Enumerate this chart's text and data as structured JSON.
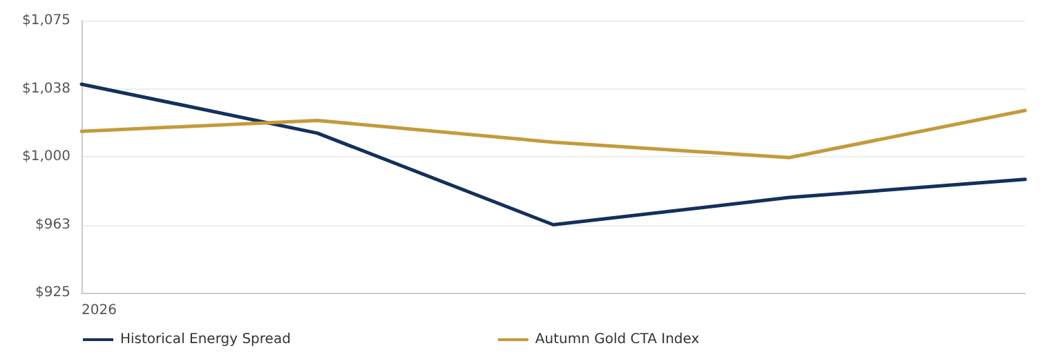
{
  "chart_data": {
    "type": "line",
    "categories": [
      "2026",
      null,
      null,
      null,
      null
    ],
    "series": [
      {
        "name": "Historical Energy Spread",
        "color": "#14305c",
        "values": [
          1040,
          1013,
          962.5,
          977.5,
          987.5
        ]
      },
      {
        "name": "Autumn Gold CTA Index",
        "color": "#c49a3a",
        "values": [
          1014,
          1020,
          1008,
          999.5,
          1025.5
        ]
      }
    ],
    "ylim": [
      925,
      1075
    ],
    "yticks": [
      {
        "value": 925,
        "label": "$925"
      },
      {
        "value": 962.5,
        "label": "$963"
      },
      {
        "value": 1000,
        "label": "$1,000"
      },
      {
        "value": 1037.5,
        "label": "$1,038"
      },
      {
        "value": 1075,
        "label": "$1,075"
      }
    ],
    "grid": "y",
    "legend": "bottom left",
    "marker": "none",
    "line_style": "solid"
  }
}
